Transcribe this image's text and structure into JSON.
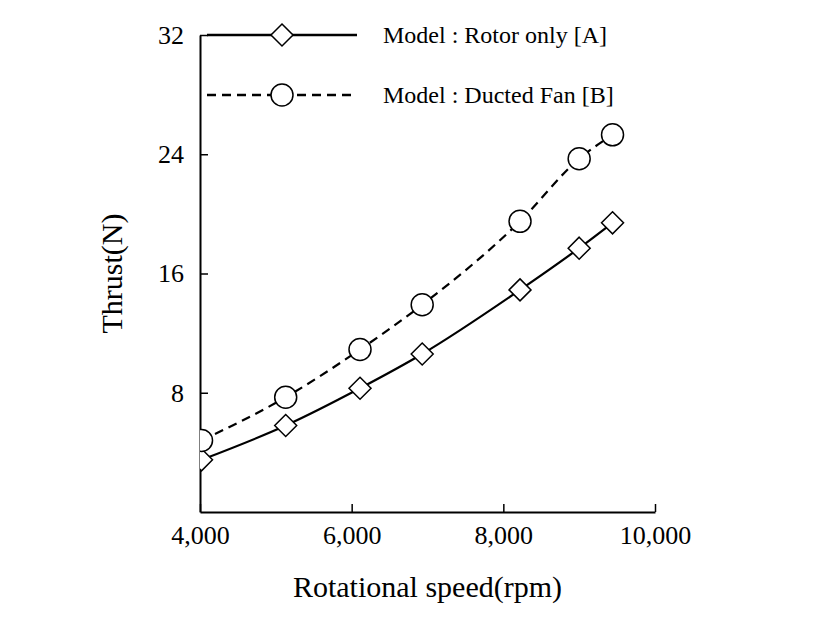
{
  "chart_data": {
    "type": "line",
    "x_label": "Rotational speed(rpm)",
    "y_label": "Thrust(N)",
    "x": [
      4020,
      5130,
      6110,
      6930,
      8220,
      9000,
      9440
    ],
    "series": [
      {
        "name": "Model : Rotor only [A]",
        "color": "#000000",
        "marker": "diamond",
        "line_style": "solid",
        "values": [
          3.5,
          5.8,
          8.3,
          10.6,
          14.9,
          17.7,
          19.4
        ]
      },
      {
        "name": "Model : Ducted Fan [B]",
        "color": "#000000",
        "marker": "circle",
        "line_style": "dashed",
        "values": [
          4.8,
          7.7,
          10.9,
          13.9,
          19.5,
          23.7,
          25.3
        ]
      }
    ],
    "xlim": [
      4000,
      10000
    ],
    "xticks": [
      {
        "value": 4000,
        "label": "4,000"
      },
      {
        "value": 6000,
        "label": "6,000"
      },
      {
        "value": 8000,
        "label": "8,000"
      },
      {
        "value": 10000,
        "label": "10,000"
      }
    ],
    "ylim": [
      0,
      32
    ],
    "yticks": [
      8,
      16,
      24,
      32
    ],
    "grid": false,
    "legend": "top"
  }
}
